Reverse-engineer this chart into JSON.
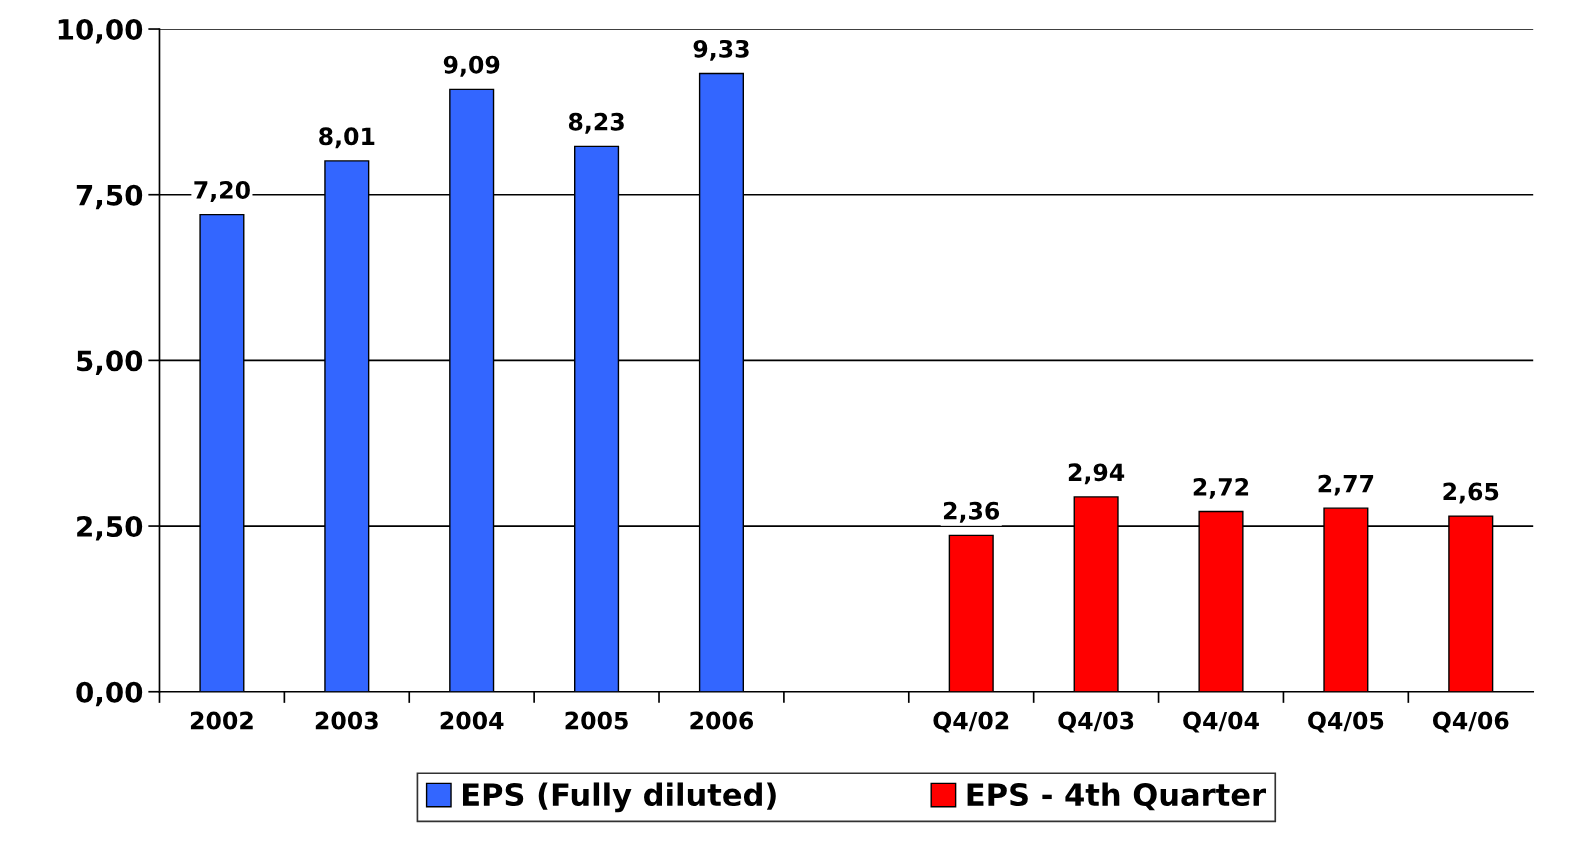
{
  "chart_data": {
    "type": "bar",
    "categories": [
      "2002",
      "2003",
      "2004",
      "2005",
      "2006",
      null,
      "Q4/02",
      "Q4/03",
      "Q4/04",
      "Q4/05",
      "Q4/06"
    ],
    "series": [
      {
        "name": "EPS (Fully diluted)",
        "color": "#3366ff",
        "values": [
          7.2,
          8.01,
          9.09,
          8.23,
          9.33,
          null,
          null,
          null,
          null,
          null,
          null
        ],
        "value_labels": [
          "7,20",
          "8,01",
          "9,09",
          "8,23",
          "9,33",
          null,
          null,
          null,
          null,
          null,
          null
        ]
      },
      {
        "name": "EPS - 4th Quarter",
        "color": "#ff0000",
        "values": [
          null,
          null,
          null,
          null,
          null,
          null,
          2.36,
          2.94,
          2.72,
          2.77,
          2.65
        ],
        "value_labels": [
          null,
          null,
          null,
          null,
          null,
          null,
          "2,36",
          "2,94",
          "2,72",
          "2,77",
          "2,65"
        ]
      }
    ],
    "ylim": [
      0,
      10
    ],
    "yticks": [
      {
        "value": 0,
        "label": "0,00"
      },
      {
        "value": 2.5,
        "label": "2,50"
      },
      {
        "value": 5,
        "label": "5,00"
      },
      {
        "value": 7.5,
        "label": "7,50"
      },
      {
        "value": 10,
        "label": "10,00"
      }
    ],
    "grid": "y",
    "legend": "bottom"
  }
}
